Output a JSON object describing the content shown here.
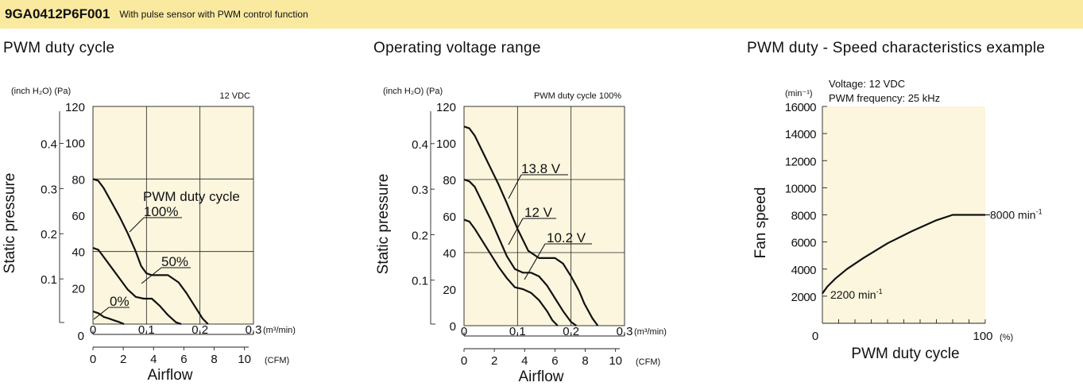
{
  "header": {
    "model": "9GA0412P6F001",
    "description": "With pulse sensor with PWM control function"
  },
  "colors": {
    "banner_bg": "#faeaa0",
    "plot_bg": "#fbf6dd",
    "grid": "#222222",
    "curve": "#111111"
  },
  "chart_data": [
    {
      "type": "line",
      "title": "PWM duty cycle",
      "note": "12 VDC",
      "xlabel": "Airflow",
      "ylabel": "Static pressure",
      "x_unit_primary": "(m³/min)",
      "x_unit_secondary": "(CFM)",
      "y_unit_secondary": "(inch H₂O)",
      "y_unit_primary": "(Pa)",
      "xlim": [
        0,
        0.3
      ],
      "ylim": [
        0,
        120
      ],
      "x_ticks": [
        "0",
        "0.1",
        "0.2",
        "0.3"
      ],
      "x_ticks_cfm": [
        "0",
        "2",
        "4",
        "6",
        "8",
        "10"
      ],
      "y_ticks": [
        "20",
        "40",
        "60",
        "80",
        "100",
        "120"
      ],
      "y_ticks_inch": [
        "0.1",
        "0.2",
        "0.3",
        "0.4"
      ],
      "legend_title": "PWM duty cycle",
      "series": [
        {
          "name": "100%",
          "x": [
            0,
            0.01,
            0.02,
            0.035,
            0.05,
            0.065,
            0.08,
            0.09,
            0.1,
            0.11,
            0.125,
            0.14,
            0.16,
            0.175,
            0.19,
            0.205,
            0.215
          ],
          "y": [
            80,
            79,
            75,
            67,
            59,
            50,
            40,
            32,
            28,
            27,
            27,
            27,
            23,
            17,
            10,
            3,
            0
          ]
        },
        {
          "name": "50%",
          "x": [
            0,
            0.01,
            0.02,
            0.035,
            0.05,
            0.065,
            0.08,
            0.095,
            0.11,
            0.125,
            0.14,
            0.155,
            0.165
          ],
          "y": [
            42,
            41,
            37,
            31,
            25,
            19,
            15,
            14,
            14,
            10,
            5,
            1,
            0
          ]
        },
        {
          "name": "0%",
          "x": [
            0,
            0.01,
            0.02,
            0.03,
            0.04,
            0.05,
            0.058
          ],
          "y": [
            7,
            6,
            4,
            3,
            2,
            1,
            0
          ]
        }
      ]
    },
    {
      "type": "line",
      "title": "Operating voltage range",
      "note": "PWM duty cycle 100%",
      "xlabel": "Airflow",
      "ylabel": "Static pressure",
      "x_unit_primary": "(m³/min)",
      "x_unit_secondary": "(CFM)",
      "y_unit_secondary": "(inch H₂O)",
      "y_unit_primary": "(Pa)",
      "xlim": [
        0,
        0.3
      ],
      "ylim": [
        0,
        120
      ],
      "x_ticks": [
        "0",
        "0.1",
        "0.2",
        "0.3"
      ],
      "x_ticks_cfm": [
        "0",
        "2",
        "4",
        "6",
        "8",
        "10"
      ],
      "y_ticks": [
        "0",
        "20",
        "40",
        "60",
        "80",
        "100",
        "120"
      ],
      "y_ticks_inch": [
        "0.1",
        "0.2",
        "0.3",
        "0.4"
      ],
      "series": [
        {
          "name": "13.8 V",
          "x": [
            0,
            0.01,
            0.02,
            0.035,
            0.05,
            0.065,
            0.08,
            0.1,
            0.12,
            0.14,
            0.155,
            0.17,
            0.185,
            0.2,
            0.215,
            0.225,
            0.24,
            0.25
          ],
          "y": [
            109,
            108,
            104,
            95,
            86,
            77,
            67,
            53,
            41,
            37,
            37,
            37,
            34,
            27,
            19,
            12,
            4,
            0
          ]
        },
        {
          "name": "12 V",
          "x": [
            0,
            0.01,
            0.02,
            0.035,
            0.05,
            0.065,
            0.08,
            0.095,
            0.11,
            0.125,
            0.14,
            0.155,
            0.17,
            0.185,
            0.2,
            0.21
          ],
          "y": [
            80,
            79,
            76,
            67,
            58,
            48,
            38,
            31,
            29,
            29,
            27,
            22,
            15,
            8,
            2,
            0
          ]
        },
        {
          "name": "10.2 V",
          "x": [
            0,
            0.01,
            0.02,
            0.035,
            0.05,
            0.065,
            0.08,
            0.095,
            0.11,
            0.125,
            0.14,
            0.155,
            0.165,
            0.175
          ],
          "y": [
            58,
            57,
            53,
            46,
            39,
            32,
            26,
            21,
            20,
            18,
            14,
            8,
            3,
            0
          ]
        }
      ]
    },
    {
      "type": "line",
      "title": "PWM duty - Speed characteristics example",
      "notes": [
        "Voltage: 12 VDC",
        "PWM frequency: 25 kHz"
      ],
      "xlabel": "PWM duty cycle",
      "ylabel": "Fan speed",
      "x_unit": "(%)",
      "y_unit": "(min⁻¹)",
      "xlim": [
        0,
        100
      ],
      "ylim": [
        0,
        16000
      ],
      "x_ticks": [
        "0",
        "100"
      ],
      "y_ticks": [
        "2000",
        "4000",
        "6000",
        "8000",
        "10000",
        "12000",
        "14000",
        "16000"
      ],
      "annotations": [
        {
          "text": "8000 min",
          "sup": "-1"
        },
        {
          "text": "2200 min",
          "sup": "-1"
        }
      ],
      "series": [
        {
          "name": "",
          "x": [
            0,
            3,
            8,
            15,
            25,
            40,
            55,
            70,
            80,
            87,
            90,
            100
          ],
          "y": [
            2200,
            2700,
            3300,
            4000,
            4800,
            5900,
            6800,
            7600,
            8000,
            8000,
            8000,
            8000
          ]
        }
      ]
    }
  ]
}
